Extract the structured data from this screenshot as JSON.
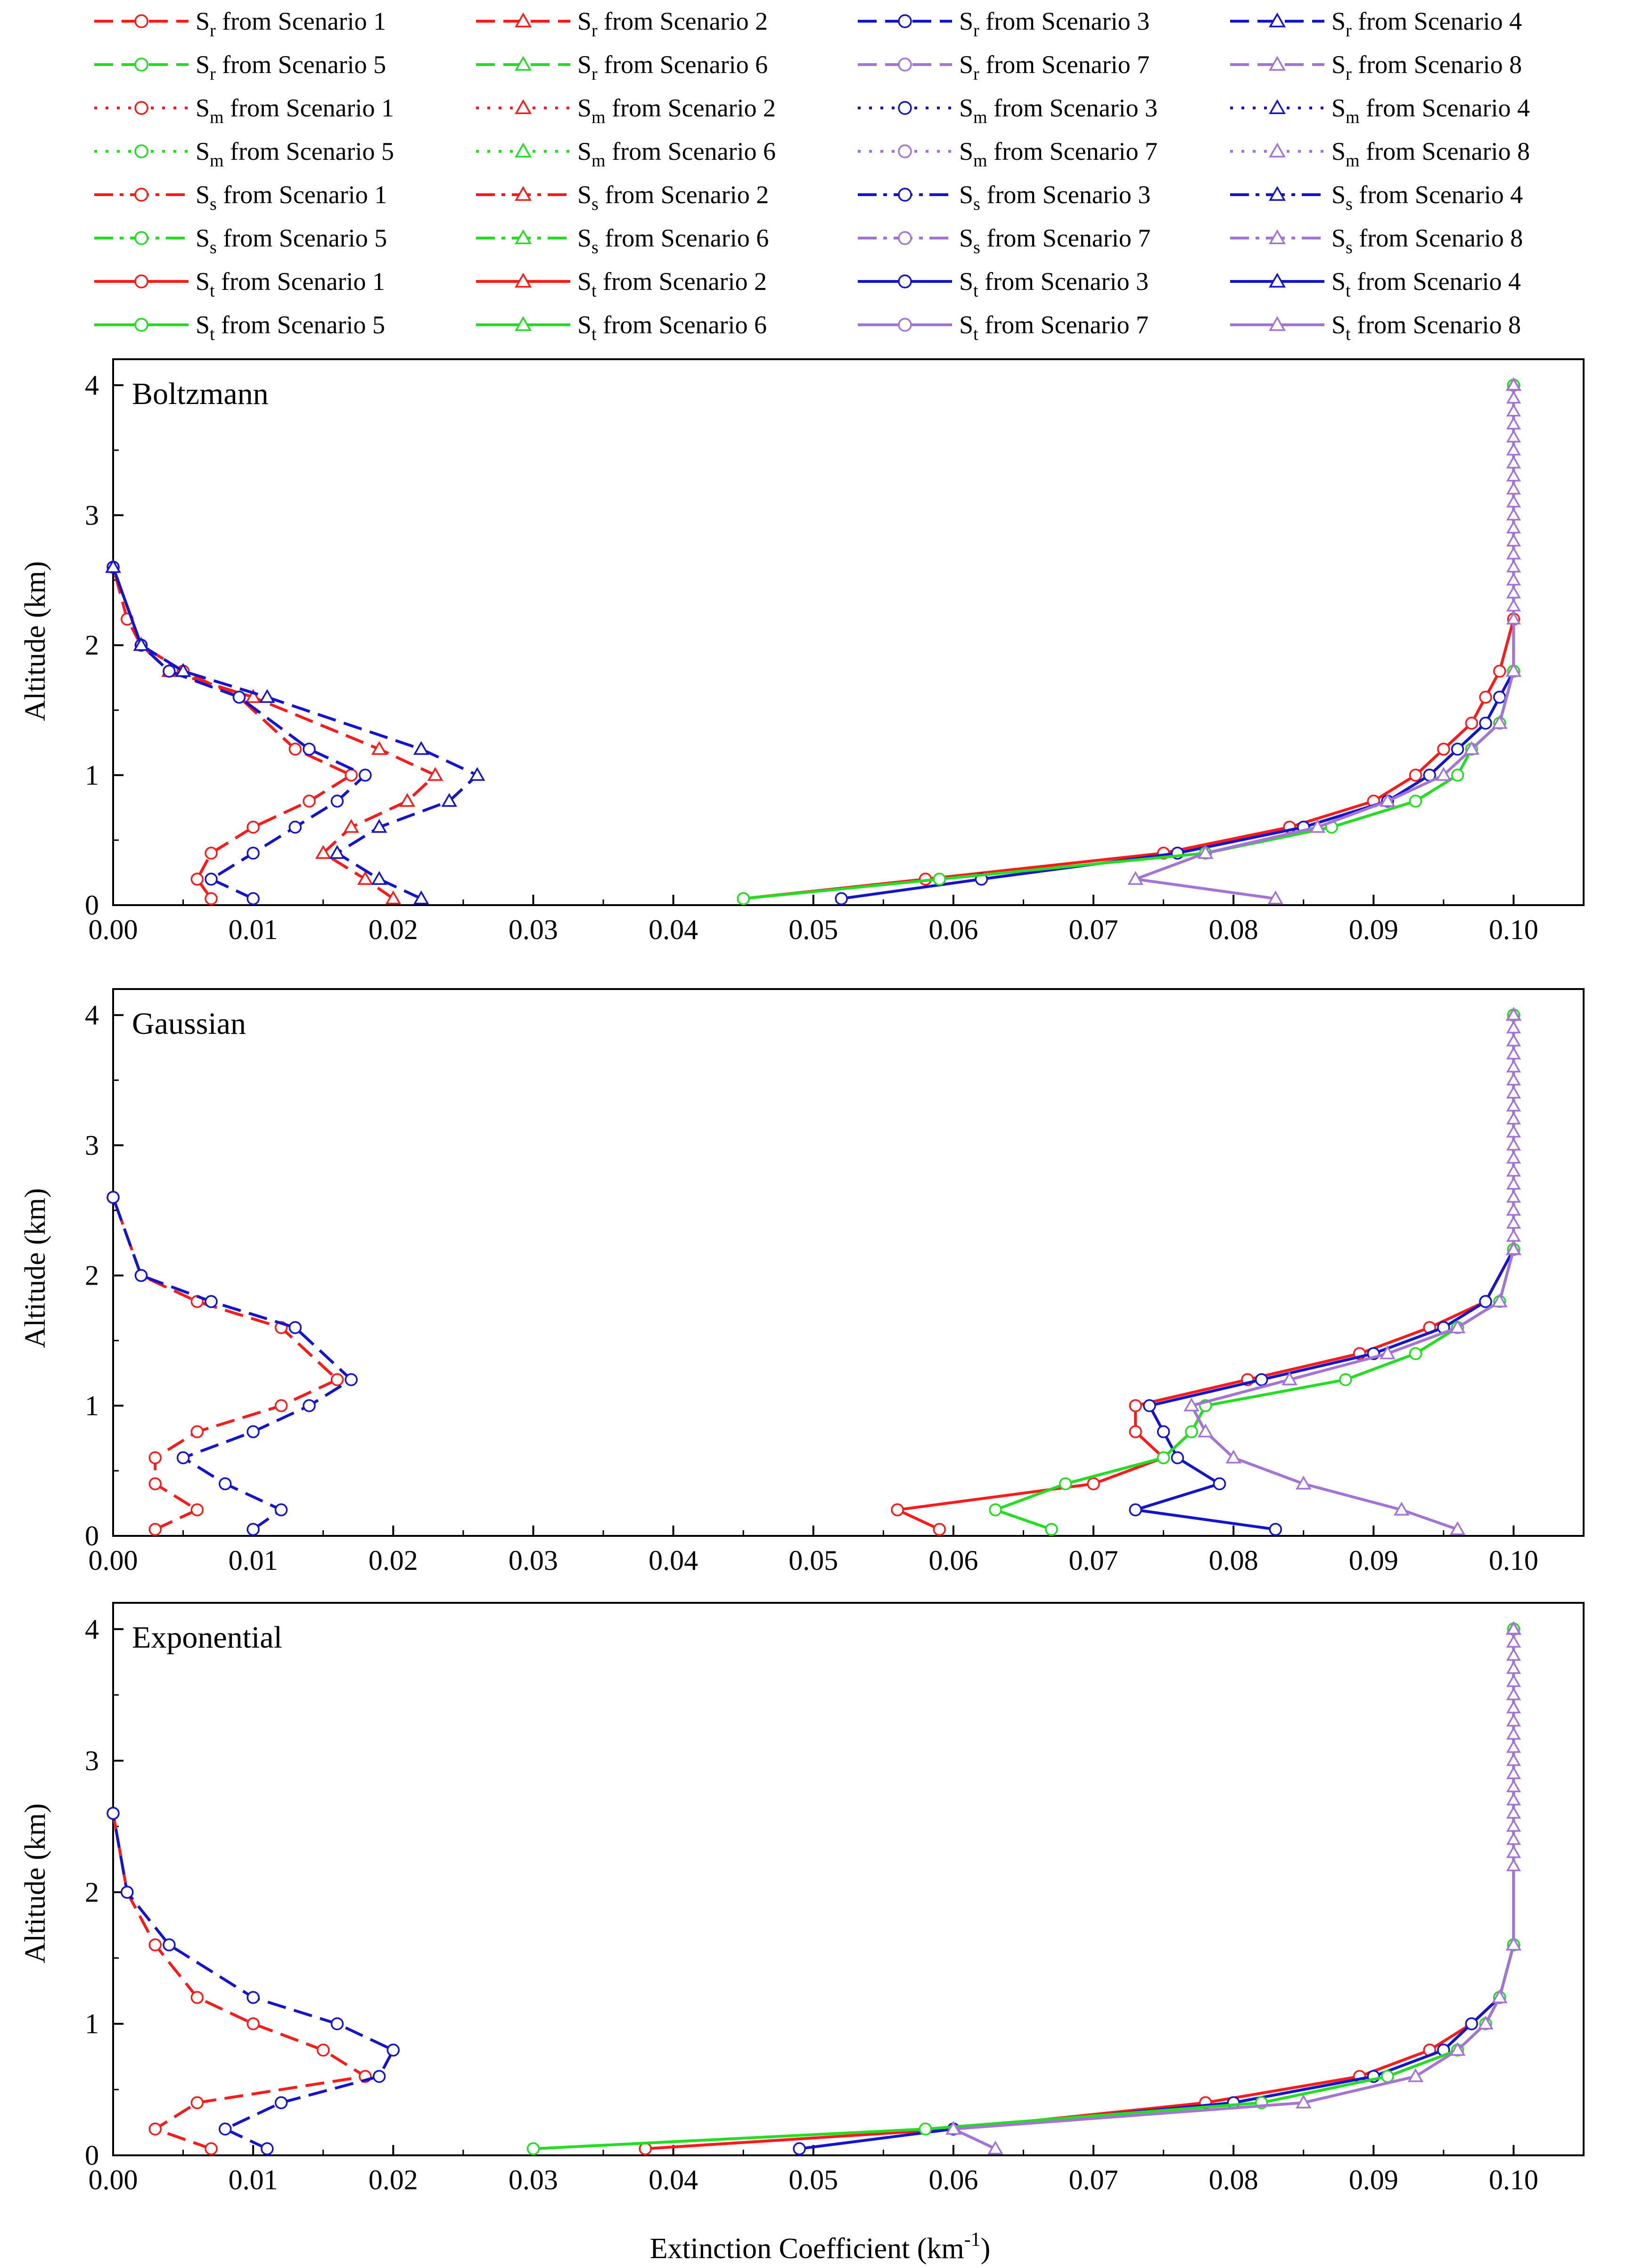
{
  "figure": {
    "xlabel_main": "Extinction Coefficient (km",
    "xlabel_sup": "-1",
    "xlabel_close": ")",
    "ylabel": "Altitude (km)"
  },
  "legend": {
    "entries": [
      {
        "sym": "S",
        "sub": "r",
        "text": "from Scenario 1",
        "color": "#ff1a1a",
        "dash": "dash",
        "marker": "circle"
      },
      {
        "sym": "S",
        "sub": "r",
        "text": "from Scenario 2",
        "color": "#ff1a1a",
        "dash": "dash",
        "marker": "triangle"
      },
      {
        "sym": "S",
        "sub": "r",
        "text": "from Scenario 3",
        "color": "#1414cc",
        "dash": "dash",
        "marker": "circle"
      },
      {
        "sym": "S",
        "sub": "r",
        "text": "from Scenario 4",
        "color": "#1414cc",
        "dash": "dash",
        "marker": "triangle"
      },
      {
        "sym": "S",
        "sub": "r",
        "text": "from Scenario 5",
        "color": "#22dd22",
        "dash": "dash",
        "marker": "circle"
      },
      {
        "sym": "S",
        "sub": "r",
        "text": "from Scenario 6",
        "color": "#22dd22",
        "dash": "dash",
        "marker": "triangle"
      },
      {
        "sym": "S",
        "sub": "r",
        "text": "from Scenario 7",
        "color": "#a374d6",
        "dash": "dash",
        "marker": "circle"
      },
      {
        "sym": "S",
        "sub": "r",
        "text": "from Scenario 8",
        "color": "#a374d6",
        "dash": "dash",
        "marker": "triangle"
      },
      {
        "sym": "S",
        "sub": "m",
        "text": "from Scenario 1",
        "color": "#ff1a1a",
        "dash": "dot",
        "marker": "circle"
      },
      {
        "sym": "S",
        "sub": "m",
        "text": "from Scenario 2",
        "color": "#ff1a1a",
        "dash": "dot",
        "marker": "triangle"
      },
      {
        "sym": "S",
        "sub": "m",
        "text": "from Scenario 3",
        "color": "#1414cc",
        "dash": "dot",
        "marker": "circle"
      },
      {
        "sym": "S",
        "sub": "m",
        "text": "from Scenario 4",
        "color": "#1414cc",
        "dash": "dot",
        "marker": "triangle"
      },
      {
        "sym": "S",
        "sub": "m",
        "text": "from Scenario 5",
        "color": "#22dd22",
        "dash": "dot",
        "marker": "circle"
      },
      {
        "sym": "S",
        "sub": "m",
        "text": "from Scenario 6",
        "color": "#22dd22",
        "dash": "dot",
        "marker": "triangle"
      },
      {
        "sym": "S",
        "sub": "m",
        "text": "from Scenario 7",
        "color": "#a374d6",
        "dash": "dot",
        "marker": "circle"
      },
      {
        "sym": "S",
        "sub": "m",
        "text": "from Scenario 8",
        "color": "#a374d6",
        "dash": "dot",
        "marker": "triangle"
      },
      {
        "sym": "S",
        "sub": "s",
        "text": "from Scenario 1",
        "color": "#ff1a1a",
        "dash": "dashdot",
        "marker": "circle"
      },
      {
        "sym": "S",
        "sub": "s",
        "text": "from Scenario 2",
        "color": "#ff1a1a",
        "dash": "dashdot",
        "marker": "triangle"
      },
      {
        "sym": "S",
        "sub": "s",
        "text": "from Scenario 3",
        "color": "#1414cc",
        "dash": "dashdot",
        "marker": "circle"
      },
      {
        "sym": "S",
        "sub": "s",
        "text": "from Scenario 4",
        "color": "#1414cc",
        "dash": "dashdot",
        "marker": "triangle"
      },
      {
        "sym": "S",
        "sub": "s",
        "text": "from Scenario 5",
        "color": "#22dd22",
        "dash": "dashdot",
        "marker": "circle"
      },
      {
        "sym": "S",
        "sub": "s",
        "text": "from Scenario 6",
        "color": "#22dd22",
        "dash": "dashdot",
        "marker": "triangle"
      },
      {
        "sym": "S",
        "sub": "s",
        "text": "from Scenario 7",
        "color": "#a374d6",
        "dash": "dashdot",
        "marker": "circle"
      },
      {
        "sym": "S",
        "sub": "s",
        "text": "from Scenario 8",
        "color": "#a374d6",
        "dash": "dashdot",
        "marker": "triangle"
      },
      {
        "sym": "S",
        "sub": "t",
        "text": "from Scenario 1",
        "color": "#ff1a1a",
        "dash": "solid",
        "marker": "circle"
      },
      {
        "sym": "S",
        "sub": "t",
        "text": "from Scenario 2",
        "color": "#ff1a1a",
        "dash": "solid",
        "marker": "triangle"
      },
      {
        "sym": "S",
        "sub": "t",
        "text": "from Scenario 3",
        "color": "#1414cc",
        "dash": "solid",
        "marker": "circle"
      },
      {
        "sym": "S",
        "sub": "t",
        "text": "from Scenario 4",
        "color": "#1414cc",
        "dash": "solid",
        "marker": "triangle"
      },
      {
        "sym": "S",
        "sub": "t",
        "text": "from Scenario 5",
        "color": "#22dd22",
        "dash": "solid",
        "marker": "circle"
      },
      {
        "sym": "S",
        "sub": "t",
        "text": "from Scenario 6",
        "color": "#22dd22",
        "dash": "solid",
        "marker": "triangle"
      },
      {
        "sym": "S",
        "sub": "t",
        "text": "from Scenario 7",
        "color": "#a374d6",
        "dash": "solid",
        "marker": "circle"
      },
      {
        "sym": "S",
        "sub": "t",
        "text": "from Scenario 8",
        "color": "#a374d6",
        "dash": "solid",
        "marker": "triangle"
      }
    ]
  },
  "chart_data": [
    {
      "type": "line",
      "title": "Boltzmann",
      "xlabel": "Extinction Coefficient (km-1)",
      "ylabel": "Altitude (km)",
      "xlim": [
        0,
        0.105
      ],
      "ylim": [
        0,
        4.2
      ],
      "xticks": [
        "0.00",
        "0.01",
        "0.02",
        "0.03",
        "0.04",
        "0.05",
        "0.06",
        "0.07",
        "0.08",
        "0.09",
        "0.10"
      ],
      "yticks": [
        "0",
        "1",
        "2",
        "3",
        "4"
      ],
      "series": [
        {
          "name": "Sr from Scenario 1",
          "x": [
            0.007,
            0.006,
            0.007,
            0.01,
            0.014,
            0.017,
            0.013,
            0.009,
            0.005,
            0.002,
            0.001,
            0.0
          ],
          "y": [
            0.05,
            0.2,
            0.4,
            0.6,
            0.8,
            1.0,
            1.2,
            1.6,
            1.8,
            2.0,
            2.2,
            2.6
          ]
        },
        {
          "name": "Sr from Scenario 2",
          "x": [
            0.02,
            0.018,
            0.015,
            0.017,
            0.021,
            0.023,
            0.019,
            0.01,
            0.004,
            0.002,
            0.0
          ],
          "y": [
            0.05,
            0.2,
            0.4,
            0.6,
            0.8,
            1.0,
            1.2,
            1.6,
            1.8,
            2.0,
            2.6
          ]
        },
        {
          "name": "Sr from Scenario 3",
          "x": [
            0.01,
            0.007,
            0.01,
            0.013,
            0.016,
            0.018,
            0.014,
            0.009,
            0.004,
            0.002,
            0.0
          ],
          "y": [
            0.05,
            0.2,
            0.4,
            0.6,
            0.8,
            1.0,
            1.2,
            1.6,
            1.8,
            2.0,
            2.6
          ]
        },
        {
          "name": "Sr from Scenario 4",
          "x": [
            0.022,
            0.019,
            0.016,
            0.019,
            0.024,
            0.026,
            0.022,
            0.011,
            0.005,
            0.002,
            0.0
          ],
          "y": [
            0.05,
            0.2,
            0.4,
            0.6,
            0.8,
            1.0,
            1.2,
            1.6,
            1.8,
            2.0,
            2.6
          ]
        },
        {
          "name": "St from Scenario 1",
          "x": [
            0.045,
            0.058,
            0.075,
            0.084,
            0.09,
            0.093,
            0.095,
            0.097,
            0.098,
            0.099,
            0.1,
            0.1
          ],
          "y": [
            0.05,
            0.2,
            0.4,
            0.6,
            0.8,
            1.0,
            1.2,
            1.4,
            1.6,
            1.8,
            2.2,
            4.0
          ]
        },
        {
          "name": "St from Scenario 3",
          "x": [
            0.052,
            0.062,
            0.076,
            0.085,
            0.091,
            0.094,
            0.096,
            0.098,
            0.099,
            0.1,
            0.1
          ],
          "y": [
            0.05,
            0.2,
            0.4,
            0.6,
            0.8,
            1.0,
            1.2,
            1.4,
            1.6,
            1.8,
            4.0
          ]
        },
        {
          "name": "St from Scenario 5",
          "x": [
            0.045,
            0.059,
            0.078,
            0.087,
            0.093,
            0.096,
            0.097,
            0.099,
            0.1,
            0.1
          ],
          "y": [
            0.05,
            0.2,
            0.4,
            0.6,
            0.8,
            1.0,
            1.2,
            1.4,
            1.8,
            4.0
          ]
        },
        {
          "name": "St from Scenario 8",
          "x": [
            0.083,
            0.073,
            0.078,
            0.086,
            0.091,
            0.095,
            0.097,
            0.099,
            0.1,
            0.1
          ],
          "y": [
            0.05,
            0.2,
            0.4,
            0.6,
            0.8,
            1.0,
            1.2,
            1.4,
            1.8,
            4.0
          ]
        }
      ]
    },
    {
      "type": "line",
      "title": "Gaussian",
      "xlabel": "Extinction Coefficient (km-1)",
      "ylabel": "Altitude (km)",
      "xlim": [
        0,
        0.105
      ],
      "ylim": [
        0,
        4.2
      ],
      "xticks": [
        "0.00",
        "0.01",
        "0.02",
        "0.03",
        "0.04",
        "0.05",
        "0.06",
        "0.07",
        "0.08",
        "0.09",
        "0.10"
      ],
      "yticks": [
        "0",
        "1",
        "2",
        "3",
        "4"
      ],
      "series": [
        {
          "name": "Sr from Scenario 1",
          "x": [
            0.003,
            0.006,
            0.003,
            0.003,
            0.006,
            0.012,
            0.016,
            0.012,
            0.006,
            0.002,
            0.0
          ],
          "y": [
            0.05,
            0.2,
            0.4,
            0.6,
            0.8,
            1.0,
            1.2,
            1.6,
            1.8,
            2.0,
            2.6
          ]
        },
        {
          "name": "Sr from Scenario 3",
          "x": [
            0.01,
            0.012,
            0.008,
            0.005,
            0.01,
            0.014,
            0.017,
            0.013,
            0.007,
            0.002,
            0.0
          ],
          "y": [
            0.05,
            0.2,
            0.4,
            0.6,
            0.8,
            1.0,
            1.2,
            1.6,
            1.8,
            2.0,
            2.6
          ]
        },
        {
          "name": "St from Scenario 1",
          "x": [
            0.059,
            0.056,
            0.07,
            0.075,
            0.073,
            0.073,
            0.081,
            0.089,
            0.094,
            0.098,
            0.1,
            0.1
          ],
          "y": [
            0.05,
            0.2,
            0.4,
            0.6,
            0.8,
            1.0,
            1.2,
            1.4,
            1.6,
            1.8,
            2.2,
            4.0
          ]
        },
        {
          "name": "St from Scenario 3",
          "x": [
            0.083,
            0.073,
            0.079,
            0.076,
            0.075,
            0.074,
            0.082,
            0.09,
            0.095,
            0.098,
            0.1,
            0.1
          ],
          "y": [
            0.05,
            0.2,
            0.4,
            0.6,
            0.8,
            1.0,
            1.2,
            1.4,
            1.6,
            1.8,
            2.2,
            4.0
          ]
        },
        {
          "name": "St from Scenario 5",
          "x": [
            0.067,
            0.063,
            0.068,
            0.075,
            0.077,
            0.078,
            0.088,
            0.093,
            0.096,
            0.099,
            0.1,
            0.1
          ],
          "y": [
            0.05,
            0.2,
            0.4,
            0.6,
            0.8,
            1.0,
            1.2,
            1.4,
            1.6,
            1.8,
            2.2,
            4.0
          ]
        },
        {
          "name": "St from Scenario 8",
          "x": [
            0.096,
            0.092,
            0.085,
            0.08,
            0.078,
            0.077,
            0.084,
            0.091,
            0.096,
            0.099,
            0.1,
            0.1
          ],
          "y": [
            0.05,
            0.2,
            0.4,
            0.6,
            0.8,
            1.0,
            1.2,
            1.4,
            1.6,
            1.8,
            2.2,
            4.0
          ]
        }
      ]
    },
    {
      "type": "line",
      "title": "Exponential",
      "xlabel": "Extinction Coefficient (km-1)",
      "ylabel": "Altitude (km)",
      "xlim": [
        0,
        0.105
      ],
      "ylim": [
        0,
        4.2
      ],
      "xticks": [
        "0.00",
        "0.01",
        "0.02",
        "0.03",
        "0.04",
        "0.05",
        "0.06",
        "0.07",
        "0.08",
        "0.09",
        "0.10"
      ],
      "yticks": [
        "0",
        "1",
        "2",
        "3",
        "4"
      ],
      "series": [
        {
          "name": "Sr from Scenario 1",
          "x": [
            0.007,
            0.003,
            0.006,
            0.018,
            0.015,
            0.01,
            0.006,
            0.003,
            0.001,
            0.0
          ],
          "y": [
            0.05,
            0.2,
            0.4,
            0.6,
            0.8,
            1.0,
            1.2,
            1.6,
            2.0,
            2.6
          ]
        },
        {
          "name": "Sr from Scenario 3",
          "x": [
            0.011,
            0.008,
            0.012,
            0.019,
            0.02,
            0.016,
            0.01,
            0.004,
            0.001,
            0.0
          ],
          "y": [
            0.05,
            0.2,
            0.4,
            0.6,
            0.8,
            1.0,
            1.2,
            1.6,
            2.0,
            2.6
          ]
        },
        {
          "name": "St from Scenario 1",
          "x": [
            0.038,
            0.06,
            0.078,
            0.089,
            0.094,
            0.097,
            0.099,
            0.1,
            0.1
          ],
          "y": [
            0.05,
            0.2,
            0.4,
            0.6,
            0.8,
            1.0,
            1.2,
            1.6,
            4.0
          ]
        },
        {
          "name": "St from Scenario 3",
          "x": [
            0.049,
            0.06,
            0.08,
            0.09,
            0.095,
            0.097,
            0.099,
            0.1,
            0.1
          ],
          "y": [
            0.05,
            0.2,
            0.4,
            0.6,
            0.8,
            1.0,
            1.2,
            1.6,
            4.0
          ]
        },
        {
          "name": "St from Scenario 5",
          "x": [
            0.03,
            0.058,
            0.082,
            0.091,
            0.096,
            0.098,
            0.099,
            0.1,
            0.1
          ],
          "y": [
            0.05,
            0.2,
            0.4,
            0.6,
            0.8,
            1.0,
            1.2,
            1.6,
            4.0
          ]
        },
        {
          "name": "St from Scenario 8",
          "x": [
            0.063,
            0.06,
            0.085,
            0.093,
            0.096,
            0.098,
            0.099,
            0.1,
            0.1
          ],
          "y": [
            0.05,
            0.2,
            0.4,
            0.6,
            0.8,
            1.0,
            1.2,
            1.6,
            4.0
          ]
        }
      ]
    }
  ]
}
